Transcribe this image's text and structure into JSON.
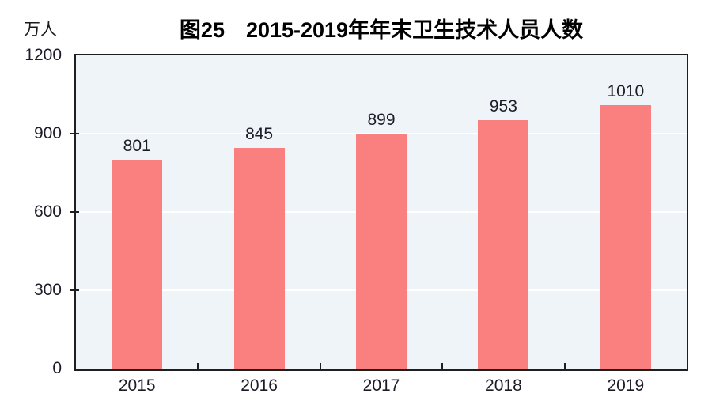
{
  "title": "图25　2015-2019年年末卫生技术人员人数",
  "unit_label": "万人",
  "colors": {
    "bar": "#FA7F7F",
    "plot_background": "#EEF4F7",
    "gridline": "#FFFFFF",
    "axis": "#1F1F1F",
    "text": "#1C1C28"
  },
  "chart_data": {
    "type": "bar",
    "title": "图25　2015-2019年年末卫生技术人员人数",
    "categories": [
      "2015",
      "2016",
      "2017",
      "2018",
      "2019"
    ],
    "values": [
      801,
      845,
      899,
      953,
      1010
    ],
    "xlabel": "",
    "ylabel": "万人",
    "ylim": [
      0,
      1200
    ],
    "yticks": [
      0,
      300,
      600,
      900,
      1200
    ],
    "grid": "horizontal",
    "legend": "none"
  }
}
